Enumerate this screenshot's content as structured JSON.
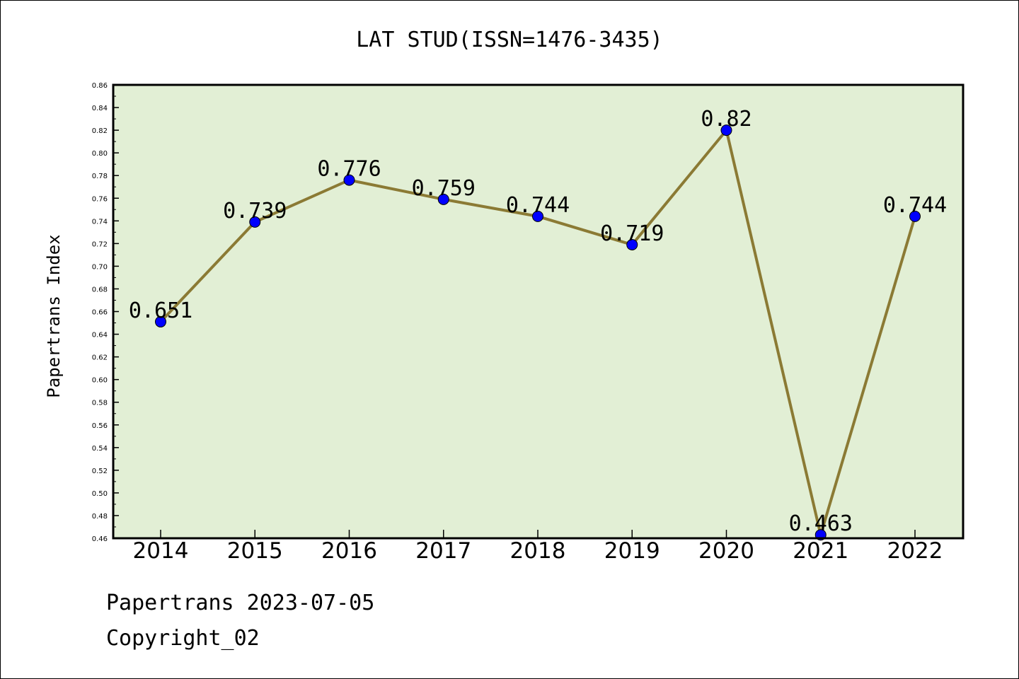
{
  "chart_data": {
    "type": "line",
    "title": "LAT STUD(ISSN=1476-3435)",
    "xlabel": "",
    "ylabel": "Papertrans Index",
    "categories": [
      "2014",
      "2015",
      "2016",
      "2017",
      "2018",
      "2019",
      "2020",
      "2021",
      "2022"
    ],
    "series": [
      {
        "values": [
          0.651,
          0.739,
          0.776,
          0.759,
          0.744,
          0.719,
          0.82,
          0.463,
          0.744
        ],
        "labels": [
          "0.651",
          "0.739",
          "0.776",
          "0.759",
          "0.744",
          "0.719",
          "0.82",
          "0.463",
          "0.744"
        ]
      }
    ],
    "ylim": [
      0.46,
      0.86
    ],
    "yticks": [
      "0.46",
      "0.48",
      "0.50",
      "0.52",
      "0.54",
      "0.56",
      "0.58",
      "0.60",
      "0.62",
      "0.64",
      "0.66",
      "0.68",
      "0.70",
      "0.72",
      "0.74",
      "0.76",
      "0.78",
      "0.80",
      "0.82",
      "0.84",
      "0.86"
    ],
    "grid": false,
    "colors": {
      "plot_background": "#e2efd5",
      "line": "#8b7a34",
      "marker": "#0000ff"
    }
  },
  "footer": {
    "line1": "Papertrans 2023-07-05",
    "line2": "Copyright_02"
  }
}
